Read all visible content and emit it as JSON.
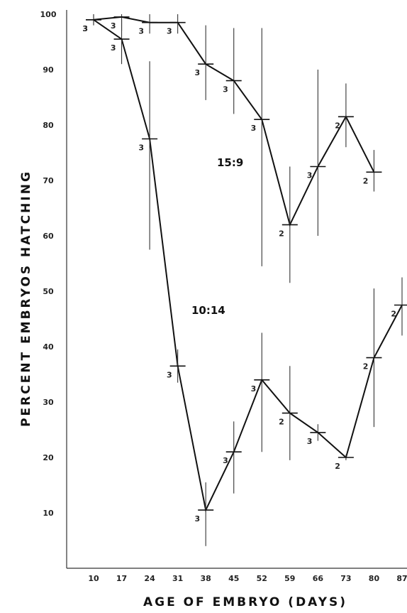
{
  "chart_data": {
    "type": "line",
    "title": "",
    "xlabel": "AGE OF EMBRYO (DAYS)",
    "ylabel": "PERCENT EMBRYOS HATCHING",
    "x_ticks": [
      10,
      17,
      24,
      31,
      38,
      45,
      52,
      59,
      66,
      73,
      80,
      87
    ],
    "x_tick_labels": [
      "10",
      "17",
      "24",
      "31",
      "38",
      "45",
      "52",
      "59",
      "66",
      "73",
      "80",
      "87"
    ],
    "y_ticks": [
      10,
      20,
      30,
      40,
      50,
      60,
      70,
      80,
      90,
      100
    ],
    "y_tick_labels": [
      "10",
      "20",
      "30",
      "40",
      "50",
      "60",
      "70",
      "80",
      "90",
      "100"
    ],
    "xlim": [
      4,
      87
    ],
    "ylim": [
      0,
      100
    ],
    "grid": false,
    "series": [
      {
        "name": "15:9",
        "points": [
          {
            "x": 10,
            "y": 99,
            "low": 98,
            "high": 100,
            "n": "3"
          },
          {
            "x": 17,
            "y": 99.5,
            "low": 97,
            "high": 100,
            "n": "3"
          },
          {
            "x": 24,
            "y": 98.5,
            "low": 96.5,
            "high": 100,
            "n": "3"
          },
          {
            "x": 31,
            "y": 98.5,
            "low": 96.5,
            "high": 100,
            "n": "3"
          },
          {
            "x": 38,
            "y": 91,
            "low": 84.5,
            "high": 98,
            "n": "3"
          },
          {
            "x": 45,
            "y": 88,
            "low": 82,
            "high": 97.5,
            "n": "3"
          },
          {
            "x": 52,
            "y": 81,
            "low": 54.5,
            "high": 97.5,
            "n": "3"
          },
          {
            "x": 59,
            "y": 62,
            "low": 51.5,
            "high": 72.5,
            "n": "2"
          },
          {
            "x": 66,
            "y": 72.5,
            "low": 60,
            "high": 90,
            "n": "3"
          },
          {
            "x": 73,
            "y": 81.5,
            "low": 76,
            "high": 87.5,
            "n": "2"
          },
          {
            "x": 80,
            "y": 71.5,
            "low": 68,
            "high": 75.5,
            "n": "2"
          }
        ]
      },
      {
        "name": "10:14",
        "points": [
          {
            "x": 10,
            "y": 99,
            "low": 98,
            "high": 100,
            "n": "3"
          },
          {
            "x": 17,
            "y": 95.5,
            "low": 91,
            "high": 99,
            "n": "3"
          },
          {
            "x": 24,
            "y": 77.5,
            "low": 57.5,
            "high": 91.5,
            "n": "3"
          },
          {
            "x": 31,
            "y": 36.5,
            "low": 33.5,
            "high": 39.5,
            "n": "3"
          },
          {
            "x": 38,
            "y": 10.5,
            "low": 4,
            "high": 15.5,
            "n": "3"
          },
          {
            "x": 45,
            "y": 21,
            "low": 13.5,
            "high": 26.5,
            "n": "3"
          },
          {
            "x": 52,
            "y": 34,
            "low": 21,
            "high": 42.5,
            "n": "3"
          },
          {
            "x": 59,
            "y": 28,
            "low": 19.5,
            "high": 36.5,
            "n": "2"
          },
          {
            "x": 66,
            "y": 24.5,
            "low": 23,
            "high": 26,
            "n": "3"
          },
          {
            "x": 73,
            "y": 20,
            "low": 19.5,
            "high": 20.5,
            "n": "2"
          },
          {
            "x": 80,
            "y": 38,
            "low": 25.5,
            "high": 50.5,
            "n": "2"
          },
          {
            "x": 87,
            "y": 47.5,
            "low": 42,
            "high": 52.5,
            "n": "2"
          }
        ]
      }
    ]
  }
}
